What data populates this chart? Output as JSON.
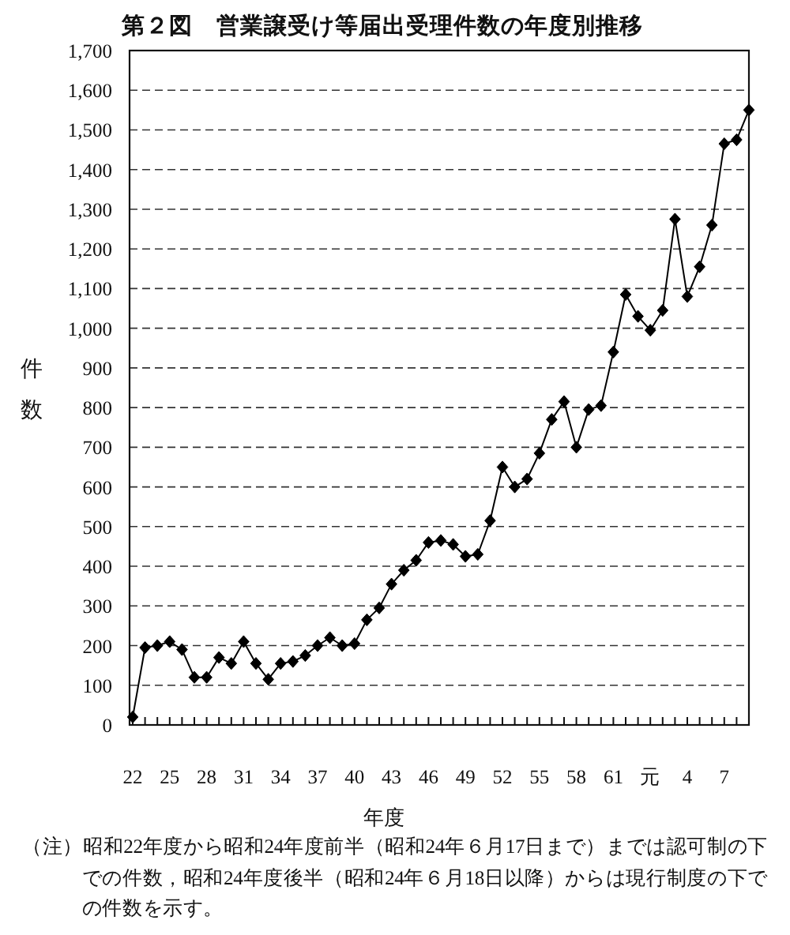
{
  "chart_data": {
    "type": "line",
    "title": "第２図　営業譲受け等届出受理件数の年度別推移",
    "xlabel": "年度",
    "ylabel": "件数",
    "categories": [
      "22",
      null,
      null,
      "25",
      null,
      null,
      "28",
      null,
      null,
      "31",
      null,
      null,
      "34",
      null,
      null,
      "37",
      null,
      null,
      "40",
      null,
      null,
      "43",
      null,
      null,
      "46",
      null,
      null,
      "49",
      null,
      null,
      "52",
      null,
      null,
      "55",
      null,
      null,
      "58",
      null,
      null,
      "61",
      null,
      null,
      "元",
      null,
      null,
      "4",
      null,
      null,
      "7",
      null,
      null
    ],
    "series": [
      {
        "color": "#000000",
        "values": [
          20,
          195,
          200,
          210,
          190,
          120,
          120,
          170,
          155,
          210,
          155,
          115,
          155,
          160,
          175,
          200,
          220,
          200,
          205,
          265,
          295,
          355,
          390,
          415,
          460,
          465,
          455,
          425,
          430,
          515,
          650,
          600,
          620,
          685,
          770,
          815,
          700,
          795,
          805,
          940,
          1085,
          1030,
          995,
          1045,
          1275,
          1080,
          1155,
          1260,
          1465,
          1475,
          1550
        ]
      }
    ],
    "ylim": [
      0,
      1700
    ],
    "yticks": [
      0,
      100,
      200,
      300,
      400,
      500,
      600,
      700,
      800,
      900,
      {
        "value": 1000,
        "label": "1,000"
      },
      {
        "value": 1100,
        "label": "1,100"
      },
      {
        "value": 1200,
        "label": "1,200"
      },
      {
        "value": 1300,
        "label": "1,300"
      },
      {
        "value": 1400,
        "label": "1,400"
      },
      {
        "value": 1500,
        "label": "1,500"
      },
      {
        "value": 1600,
        "label": "1,600"
      },
      {
        "value": 1700,
        "label": "1,700"
      }
    ],
    "grid": "y",
    "marker": "diamond",
    "line_style": "solid",
    "annotations": [
      "（注）昭和22年度から昭和24年度前半（昭和24年６月17日まで）までは認可制の下での件数，昭和24年度後半（昭和24年６月18日以降）からは現行制度の下での件数を示す。"
    ]
  }
}
